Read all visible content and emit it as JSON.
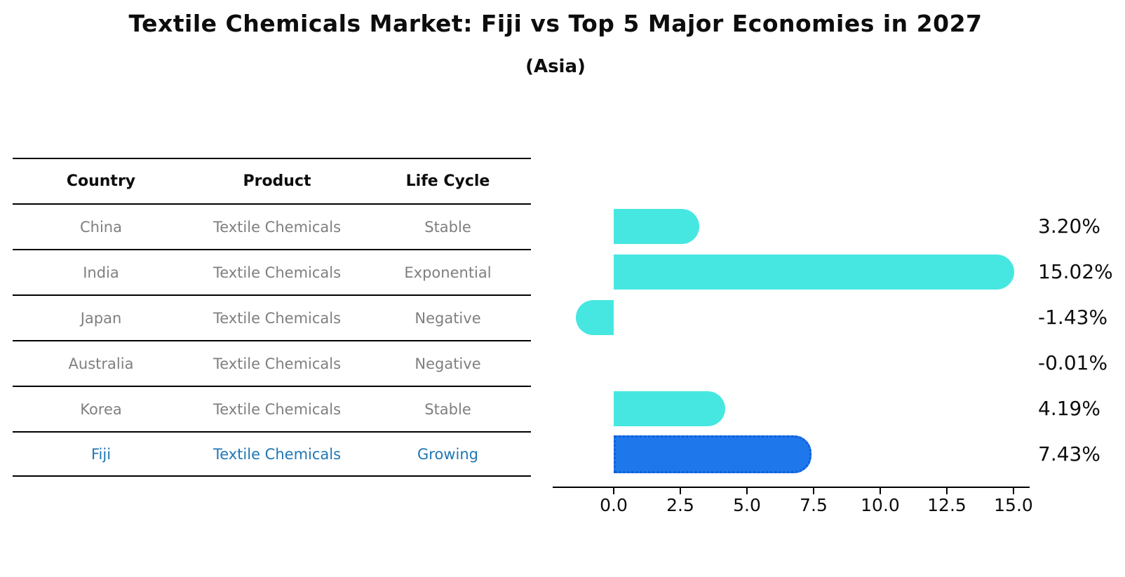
{
  "title": "Textile Chemicals Market: Fiji vs Top 5 Major Economies in 2027",
  "subtitle": "(Asia)",
  "table": {
    "headers": [
      "Country",
      "Product",
      "Life Cycle"
    ],
    "rows": [
      {
        "country": "China",
        "product": "Textile Chemicals",
        "life_cycle": "Stable",
        "highlight": false
      },
      {
        "country": "India",
        "product": "Textile Chemicals",
        "life_cycle": "Exponential",
        "highlight": false
      },
      {
        "country": "Japan",
        "product": "Textile Chemicals",
        "life_cycle": "Negative",
        "highlight": false
      },
      {
        "country": "Australia",
        "product": "Textile Chemicals",
        "life_cycle": "Negative",
        "highlight": false
      },
      {
        "country": "Korea",
        "product": "Textile Chemicals",
        "life_cycle": "Stable",
        "highlight": false
      },
      {
        "country": "Fiji",
        "product": "Textile Chemicals",
        "life_cycle": "Growing",
        "highlight": true
      }
    ]
  },
  "chart_data": {
    "type": "bar",
    "orientation": "horizontal",
    "title": "Textile Chemicals Market: Fiji vs Top 5 Major Economies in 2027",
    "subtitle": "(Asia)",
    "categories": [
      "China",
      "India",
      "Japan",
      "Australia",
      "Korea",
      "Fiji"
    ],
    "values": [
      3.2,
      15.02,
      -1.43,
      -0.01,
      4.19,
      7.43
    ],
    "value_labels": [
      "3.20%",
      "15.02%",
      "-1.43%",
      "-0.01%",
      "4.19%",
      "7.43%"
    ],
    "unit": "%",
    "x_tick_labels": [
      "0.0",
      "2.5",
      "5.0",
      "7.5",
      "10.0",
      "12.5",
      "15.0"
    ],
    "x_tick_values": [
      0,
      2.5,
      5,
      7.5,
      10,
      12.5,
      15
    ],
    "xlim": [
      -2.3,
      15.6
    ],
    "grid": false,
    "legend": null,
    "highlight_index": 5,
    "bar_color_default": "#47E7E1",
    "bar_color_highlight": "#1E78EB",
    "highlight_border_color": "#0f5fd7",
    "highlight_text_color": "#1f77b4",
    "table_text_color": "#7f7f7f"
  }
}
